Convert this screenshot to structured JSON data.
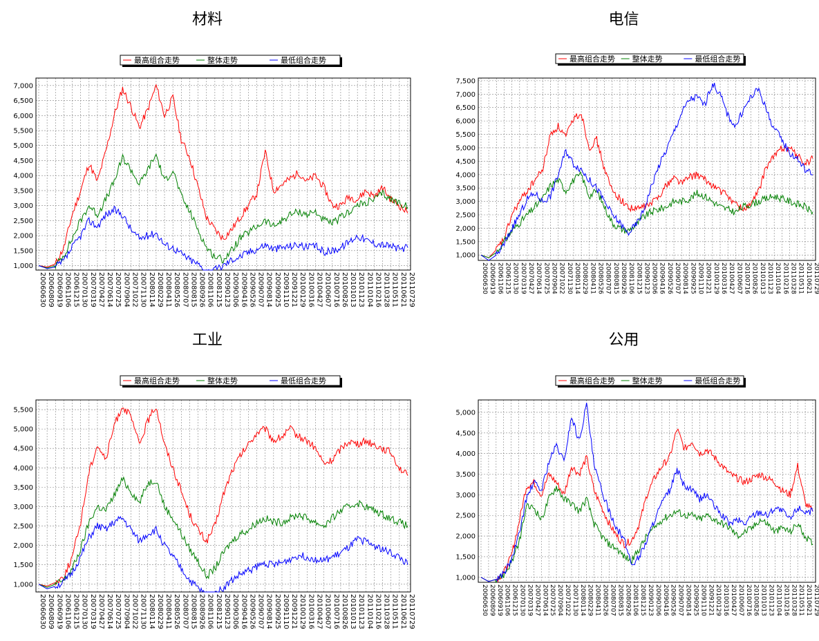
{
  "colors": {
    "high": "#ff0000",
    "overall": "#008000",
    "low": "#0000ff",
    "grid": "#808080",
    "axis": "#000000"
  },
  "legend": [
    "最高组合走势",
    "整体走势",
    "最低组合走势"
  ],
  "panels": [
    {
      "title": "材料",
      "chart_data": {
        "type": "line",
        "title": "材料",
        "x_tick_labels": [
          "20060630",
          "20060809",
          "20060919",
          "20061106",
          "20061215",
          "20070130",
          "20070319",
          "20070427",
          "20070614",
          "20070725",
          "20070904",
          "20071022",
          "20071130",
          "20080114",
          "20080229",
          "20080411",
          "20080526",
          "20080707",
          "20080815",
          "20080926",
          "20081106",
          "20081215",
          "20090123",
          "20090306",
          "20090416",
          "20090526",
          "20090707",
          "20090814",
          "20090925",
          "20091110",
          "20091221",
          "20100129",
          "20100316",
          "20100427",
          "20100607",
          "20100716",
          "20100826",
          "20101013",
          "20101123",
          "20110104",
          "20110216",
          "20110328",
          "20110511",
          "20110621",
          "20110729"
        ],
        "ylim": [
          850,
          7250
        ],
        "y_ticks": [
          1000,
          1500,
          2000,
          2500,
          3000,
          3500,
          4000,
          4500,
          5000,
          5500,
          6000,
          6500,
          7000
        ],
        "grid": true,
        "legend_position": "top",
        "series": [
          {
            "name": "最高组合走势",
            "values": [
              1000,
              950,
              1050,
              1600,
              2700,
              3500,
              4400,
              3800,
              4800,
              6000,
              6900,
              6300,
              5600,
              6200,
              7000,
              6000,
              6600,
              5200,
              4600,
              3600,
              2600,
              2200,
              1900,
              2200,
              2600,
              3000,
              3400,
              4800,
              3500,
              3700,
              3900,
              4100,
              3800,
              4000,
              3600,
              3000,
              3000,
              3300,
              3200,
              3500,
              3300,
              3600,
              3200,
              3000,
              2750
            ]
          },
          {
            "name": "整体走势",
            "values": [
              1000,
              920,
              1000,
              1350,
              1900,
              2500,
              3000,
              2700,
              3200,
              3800,
              4600,
              4200,
              3700,
              4200,
              4700,
              3800,
              4200,
              3300,
              2800,
              2200,
              1600,
              1300,
              1200,
              1500,
              1900,
              2100,
              2300,
              2500,
              2300,
              2500,
              2700,
              2800,
              2700,
              2800,
              2500,
              2400,
              2600,
              2800,
              3000,
              3100,
              3200,
              3400,
              3200,
              3100,
              2950
            ]
          },
          {
            "name": "最低组合走势",
            "values": [
              1000,
              900,
              950,
              1150,
              1600,
              2000,
              2500,
              2300,
              2700,
              2850,
              2700,
              2200,
              1900,
              2000,
              2100,
              1700,
              1600,
              1400,
              1200,
              1050,
              800,
              850,
              1000,
              1200,
              1300,
              1450,
              1550,
              1700,
              1550,
              1600,
              1650,
              1700,
              1600,
              1650,
              1450,
              1500,
              1600,
              1800,
              2000,
              1850,
              1750,
              1700,
              1650,
              1550,
              1600
            ]
          }
        ]
      }
    },
    {
      "title": "电信",
      "chart_data": {
        "type": "line",
        "title": "电信",
        "x_tick_labels": [
          "20060630",
          "20060919",
          "20061106",
          "20061215",
          "20070130",
          "20070319",
          "20070427",
          "20070614",
          "20070725",
          "20070904",
          "20071022",
          "20071130",
          "20080114",
          "20080229",
          "20080411",
          "20080526",
          "20080707",
          "20080815",
          "20080926",
          "20081106",
          "20081215",
          "20090123",
          "20090306",
          "20090416",
          "20090526",
          "20090707",
          "20090814",
          "20090925",
          "20091110",
          "20091221",
          "20100129",
          "20100316",
          "20100427",
          "20100607",
          "20100716",
          "20100826",
          "20101013",
          "20101123",
          "20110104",
          "20110216",
          "20110328",
          "20110511",
          "20110621",
          "20110729"
        ],
        "ylim": [
          800,
          7600
        ],
        "y_ticks": [
          1000,
          1500,
          2000,
          2500,
          3000,
          3500,
          4000,
          4500,
          5000,
          5500,
          6000,
          6500,
          7000,
          7500
        ],
        "grid": true,
        "legend_position": "top",
        "series": [
          {
            "name": "最高组合走势",
            "values": [
              1000,
              900,
              1200,
              1600,
              2500,
              3000,
              3400,
              3800,
              4200,
              5500,
              5800,
              5400,
              6100,
              6300,
              5000,
              5300,
              4200,
              3400,
              3100,
              2800,
              2700,
              2800,
              2900,
              3200,
              3600,
              3900,
              3700,
              3900,
              4000,
              3800,
              3600,
              3400,
              3200,
              2900,
              2700,
              2900,
              3400,
              4300,
              4700,
              5000,
              5000,
              4700,
              4400,
              4600
            ]
          },
          {
            "name": "整体走势",
            "values": [
              1000,
              900,
              1100,
              1500,
              1900,
              2200,
              2500,
              2800,
              3100,
              3600,
              3800,
              3400,
              3800,
              4000,
              3200,
              3400,
              2800,
              2200,
              2000,
              1900,
              2100,
              2400,
              2600,
              2700,
              2800,
              3000,
              3000,
              3100,
              3300,
              3200,
              3000,
              2800,
              2700,
              2600,
              2800,
              2900,
              3000,
              3100,
              3200,
              3100,
              3000,
              2900,
              2800,
              2600
            ]
          },
          {
            "name": "最低组合走势",
            "values": [
              1000,
              800,
              1000,
              1400,
              2000,
              2500,
              3100,
              3300,
              3000,
              3200,
              4000,
              4900,
              4400,
              4200,
              3800,
              3500,
              3000,
              2500,
              2200,
              1800,
              2100,
              2600,
              3500,
              4300,
              4900,
              5600,
              6300,
              6800,
              6900,
              6600,
              7400,
              7000,
              6200,
              5800,
              6400,
              6900,
              7200,
              6400,
              5700,
              5300,
              4800,
              4600,
              4200,
              4000
            ]
          }
        ]
      }
    },
    {
      "title": "工业",
      "chart_data": {
        "type": "line",
        "title": "工业",
        "x_tick_labels": [
          "20060630",
          "20060809",
          "20060919",
          "20061106",
          "20061215",
          "20070130",
          "20070319",
          "20070427",
          "20070614",
          "20070725",
          "20070904",
          "20071022",
          "20071130",
          "20080114",
          "20080229",
          "20080411",
          "20080526",
          "20080707",
          "20080815",
          "20080926",
          "20081106",
          "20081215",
          "20090123",
          "20090306",
          "20090416",
          "20090526",
          "20090707",
          "20090814",
          "20090925",
          "20091110",
          "20091221",
          "20100129",
          "20100316",
          "20100427",
          "20100607",
          "20100716",
          "20100826",
          "20101013",
          "20101123",
          "20110104",
          "20110216",
          "20110328",
          "20110511",
          "20110621",
          "20110729"
        ],
        "ylim": [
          800,
          5750
        ],
        "y_ticks": [
          1000,
          1500,
          2000,
          2500,
          3000,
          3500,
          4000,
          4500,
          5000,
          5500
        ],
        "grid": true,
        "legend_position": "top",
        "series": [
          {
            "name": "最高组合走势",
            "values": [
              1000,
              950,
              1050,
              1200,
              1700,
              2600,
              3900,
              4600,
              4200,
              5100,
              5600,
              5300,
              4600,
              5200,
              5600,
              4600,
              4000,
              3400,
              2800,
              2400,
              2100,
              2500,
              3300,
              3900,
              4300,
              4600,
              4900,
              5000,
              4700,
              4800,
              5000,
              4800,
              4700,
              4500,
              4100,
              4200,
              4500,
              4700,
              4600,
              4700,
              4600,
              4500,
              4400,
              4000,
              3800
            ]
          },
          {
            "name": "整体走势",
            "values": [
              1000,
              920,
              1000,
              1100,
              1400,
              1900,
              2600,
              3000,
              2900,
              3300,
              3700,
              3400,
              3100,
              3600,
              3700,
              3000,
              2700,
              2300,
              1900,
              1600,
              1200,
              1400,
              1800,
              2100,
              2300,
              2400,
              2600,
              2700,
              2600,
              2600,
              2700,
              2800,
              2700,
              2600,
              2500,
              2700,
              2900,
              3000,
              3100,
              3000,
              2900,
              2800,
              2700,
              2600,
              2500
            ]
          },
          {
            "name": "最低组合走势",
            "values": [
              1000,
              880,
              950,
              1050,
              1300,
              1700,
              2200,
              2500,
              2400,
              2600,
              2700,
              2400,
              2100,
              2300,
              2400,
              2000,
              1700,
              1400,
              1100,
              900,
              700,
              750,
              900,
              1100,
              1250,
              1350,
              1450,
              1550,
              1500,
              1550,
              1650,
              1750,
              1700,
              1650,
              1600,
              1700,
              1800,
              1950,
              2150,
              2100,
              2000,
              1900,
              1800,
              1700,
              1500
            ]
          }
        ]
      }
    },
    {
      "title": "公用",
      "chart_data": {
        "type": "line",
        "title": "公用",
        "x_tick_labels": [
          "20060630",
          "20060809",
          "20060919",
          "20061106",
          "20061215",
          "20070130",
          "20070319",
          "20070427",
          "20070614",
          "20070725",
          "20070904",
          "20071022",
          "20071130",
          "20080114",
          "20080229",
          "20080411",
          "20080526",
          "20080707",
          "20080815",
          "20080926",
          "20081106",
          "20081215",
          "20090123",
          "20090306",
          "20090416",
          "20090526",
          "20090707",
          "20090814",
          "20090925",
          "20091110",
          "20091221",
          "20100129",
          "20100316",
          "20100427",
          "20100607",
          "20100716",
          "20100826",
          "20101013",
          "20101123",
          "20110104",
          "20110216",
          "20110328",
          "20110511",
          "20110621",
          "20110729"
        ],
        "ylim": [
          880,
          5300
        ],
        "y_ticks": [
          1000,
          1500,
          2000,
          2500,
          3000,
          3500,
          4000,
          4500,
          5000
        ],
        "grid": true,
        "legend_position": "top",
        "series": [
          {
            "name": "最高组合走势",
            "values": [
              1000,
              900,
              950,
              1100,
              1500,
              2300,
              3200,
              3300,
              3000,
              3500,
              3300,
              3000,
              3700,
              3500,
              3900,
              3100,
              2700,
              2300,
              2000,
              1800,
              1900,
              2300,
              3000,
              3400,
              3700,
              3900,
              4600,
              4100,
              4300,
              4000,
              4100,
              3900,
              3700,
              3500,
              3400,
              3300,
              3400,
              3500,
              3400,
              3300,
              3100,
              3000,
              3700,
              2800,
              2600
            ]
          },
          {
            "name": "整体走势",
            "values": [
              1000,
              900,
              950,
              1050,
              1350,
              1800,
              2700,
              2700,
              2400,
              2900,
              3200,
              2900,
              2800,
              2600,
              2900,
              2300,
              2000,
              1800,
              1700,
              1500,
              1400,
              1700,
              2000,
              2200,
              2400,
              2500,
              2600,
              2500,
              2500,
              2400,
              2500,
              2400,
              2300,
              2200,
              2000,
              2100,
              2200,
              2400,
              2300,
              2100,
              2200,
              2100,
              2300,
              2000,
              1800
            ]
          },
          {
            "name": "最低组合走势",
            "values": [
              1000,
              900,
              950,
              1100,
              1400,
              2000,
              2900,
              3300,
              3100,
              3800,
              4200,
              3800,
              4900,
              4300,
              5200,
              3700,
              3100,
              2600,
              2200,
              1900,
              1300,
              1500,
              1900,
              2400,
              2800,
              3100,
              3600,
              3200,
              3100,
              2900,
              3000,
              2700,
              2500,
              2300,
              2400,
              2300,
              2500,
              2600,
              2500,
              2700,
              2600,
              2400,
              2700,
              2600,
              2600
            ]
          }
        ]
      }
    }
  ]
}
